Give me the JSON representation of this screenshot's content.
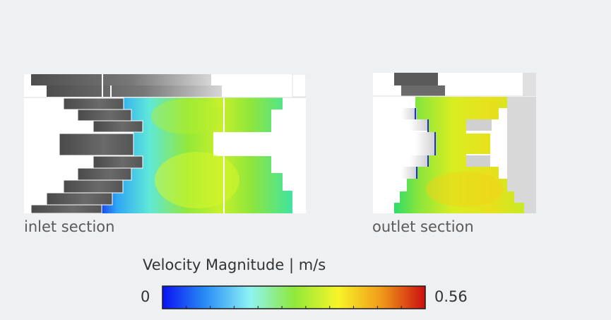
{
  "views": {
    "inlet": {
      "label": "inlet section"
    },
    "outlet": {
      "label": "outlet section"
    }
  },
  "colorbar": {
    "title": "Velocity Magnitude | m/s",
    "min_label": "0",
    "max_label": "0.56",
    "colors": [
      "#0a12f2",
      "#2a8ff5",
      "#8ef3f5",
      "#8ee93a",
      "#f7f52a",
      "#f09a1a",
      "#cc0e0e"
    ],
    "tick_count": 11
  }
}
